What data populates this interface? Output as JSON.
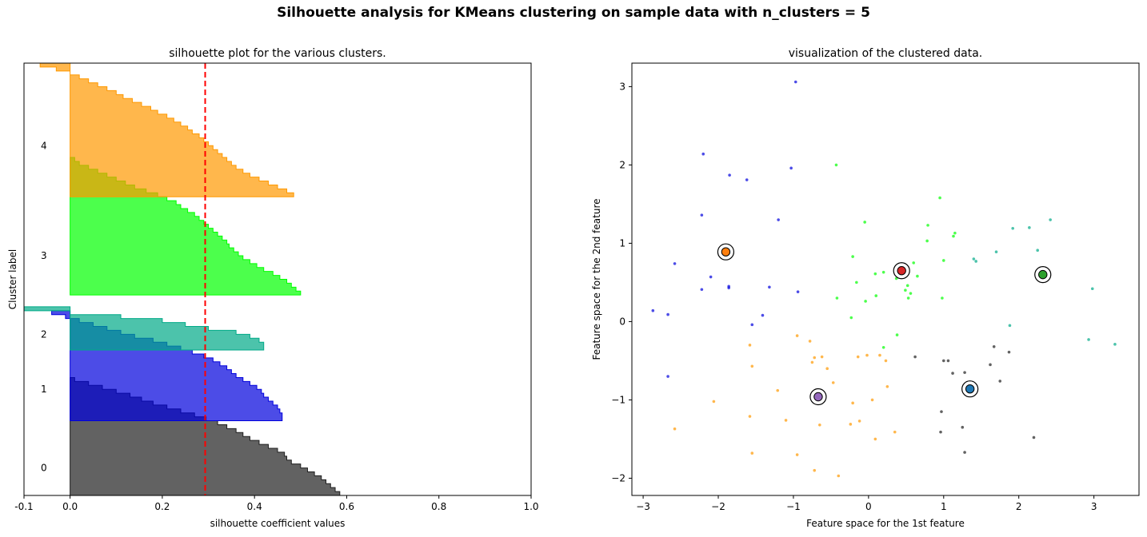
{
  "figure": {
    "suptitle": "Silhouette analysis for KMeans clustering on sample data with n_clusters = 5"
  },
  "chart_data": [
    {
      "type": "area",
      "title": "silhouette plot for the various clusters.",
      "xlabel": "silhouette coefficient values",
      "ylabel": "Cluster label",
      "xlim": [
        -0.1,
        1.0
      ],
      "ylim": [
        0,
        110
      ],
      "xticks": [
        -0.1,
        0.0,
        0.2,
        0.4,
        0.6,
        0.8,
        1.0
      ],
      "xtick_labels": [
        "-0.1",
        "0.0",
        "0.2",
        "0.4",
        "0.6",
        "0.8",
        "1.0"
      ],
      "yticks": [],
      "grid": false,
      "average_silhouette": 0.293,
      "average_line_color": "#ff0000",
      "clusters": [
        {
          "label": "0",
          "label_y": 7,
          "y_lower": 0,
          "color": "#1f1f1f",
          "values": [
            0.585,
            0.575,
            0.565,
            0.555,
            0.545,
            0.53,
            0.515,
            0.5,
            0.48,
            0.47,
            0.465,
            0.45,
            0.43,
            0.41,
            0.39,
            0.375,
            0.36,
            0.34,
            0.32,
            0.295,
            0.27,
            0.24,
            0.21,
            0.18,
            0.155,
            0.13,
            0.1,
            0.07,
            0.04,
            0.01
          ]
        },
        {
          "label": "1",
          "label_y": 27,
          "y_lower": 19,
          "color": "#0000dd",
          "values": [
            0.46,
            0.46,
            0.455,
            0.45,
            0.44,
            0.43,
            0.42,
            0.415,
            0.405,
            0.39,
            0.375,
            0.36,
            0.35,
            0.34,
            0.325,
            0.31,
            0.29,
            0.265,
            0.24,
            0.21,
            0.18,
            0.14,
            0.11,
            0.08,
            0.05,
            0.02,
            -0.01,
            -0.04
          ]
        },
        {
          "label": "2",
          "label_y": 41,
          "y_lower": 37,
          "color": "#00aa88",
          "values": [
            0.42,
            0.42,
            0.41,
            0.39,
            0.36,
            0.3,
            0.25,
            0.2,
            0.11,
            0.0,
            -0.1
          ]
        },
        {
          "label": "3",
          "label_y": 61,
          "y_lower": 51,
          "color": "#00ff00",
          "values": [
            0.5,
            0.49,
            0.48,
            0.47,
            0.455,
            0.44,
            0.42,
            0.405,
            0.39,
            0.375,
            0.365,
            0.355,
            0.345,
            0.34,
            0.33,
            0.32,
            0.31,
            0.3,
            0.29,
            0.28,
            0.27,
            0.255,
            0.24,
            0.23,
            0.21,
            0.19,
            0.165,
            0.14,
            0.12,
            0.1,
            0.08,
            0.06,
            0.04,
            0.02,
            0.01
          ]
        },
        {
          "label": "4",
          "label_y": 89,
          "y_lower": 76,
          "color": "#ff9900",
          "values": [
            0.485,
            0.47,
            0.45,
            0.43,
            0.41,
            0.39,
            0.375,
            0.36,
            0.35,
            0.34,
            0.33,
            0.32,
            0.31,
            0.3,
            0.29,
            0.28,
            0.265,
            0.255,
            0.24,
            0.225,
            0.21,
            0.19,
            0.175,
            0.155,
            0.135,
            0.115,
            0.1,
            0.08,
            0.06,
            0.04,
            0.02,
            0.0,
            -0.03,
            -0.065
          ]
        }
      ]
    },
    {
      "type": "scatter",
      "title": "visualization of the clustered data.",
      "xlabel": "Feature space for the 1st feature",
      "ylabel": "Feature space for the 2nd feature",
      "xlim": [
        -3.15,
        3.6
      ],
      "ylim": [
        -2.22,
        3.3
      ],
      "xticks": [
        -3,
        -2,
        -1,
        0,
        1,
        2,
        3
      ],
      "xtick_labels": [
        "−3",
        "−2",
        "−1",
        "0",
        "1",
        "2",
        "3"
      ],
      "yticks": [
        -2,
        -1,
        0,
        1,
        2,
        3
      ],
      "ytick_labels": [
        "−2",
        "−1",
        "0",
        "1",
        "2",
        "3"
      ],
      "grid": false,
      "series": [
        {
          "cluster": 0,
          "color": "#1f1f1f",
          "points": [
            [
              0.62,
              -0.45
            ],
            [
              1.0,
              -0.5
            ],
            [
              1.06,
              -0.5
            ],
            [
              1.12,
              -0.66
            ],
            [
              1.28,
              -0.65
            ],
            [
              1.62,
              -0.55
            ],
            [
              1.67,
              -0.32
            ],
            [
              1.87,
              -0.39
            ],
            [
              1.75,
              -0.76
            ],
            [
              0.97,
              -1.15
            ],
            [
              0.96,
              -1.41
            ],
            [
              1.25,
              -1.35
            ],
            [
              1.28,
              -1.67
            ],
            [
              2.2,
              -1.48
            ]
          ]
        },
        {
          "cluster": 1,
          "color": "#0000dd",
          "points": [
            [
              -0.97,
              3.06
            ],
            [
              -2.2,
              2.14
            ],
            [
              -1.85,
              1.87
            ],
            [
              -1.62,
              1.81
            ],
            [
              -1.03,
              1.96
            ],
            [
              -2.22,
              1.36
            ],
            [
              -1.2,
              1.3
            ],
            [
              -2.58,
              0.74
            ],
            [
              -2.1,
              0.57
            ],
            [
              -2.22,
              0.41
            ],
            [
              -1.86,
              0.43
            ],
            [
              -1.86,
              0.45
            ],
            [
              -1.32,
              0.44
            ],
            [
              -0.94,
              0.38
            ],
            [
              -2.87,
              0.14
            ],
            [
              -2.67,
              0.09
            ],
            [
              -1.41,
              0.08
            ],
            [
              -1.55,
              -0.04
            ],
            [
              -2.67,
              -0.7
            ]
          ]
        },
        {
          "cluster": 2,
          "color": "#00aa88",
          "points": [
            [
              1.4,
              0.8
            ],
            [
              1.43,
              0.77
            ],
            [
              1.7,
              0.89
            ],
            [
              1.92,
              1.19
            ],
            [
              2.14,
              1.2
            ],
            [
              2.25,
              0.91
            ],
            [
              2.42,
              1.3
            ],
            [
              1.88,
              -0.05
            ],
            [
              2.98,
              0.42
            ],
            [
              2.93,
              -0.23
            ],
            [
              3.28,
              -0.29
            ]
          ]
        },
        {
          "cluster": 3,
          "color": "#00ff00",
          "points": [
            [
              -0.43,
              2.0
            ],
            [
              0.95,
              1.58
            ],
            [
              -0.05,
              1.27
            ],
            [
              0.79,
              1.23
            ],
            [
              1.13,
              1.09
            ],
            [
              1.15,
              1.13
            ],
            [
              0.78,
              1.03
            ],
            [
              -0.21,
              0.83
            ],
            [
              0.09,
              0.61
            ],
            [
              0.2,
              0.63
            ],
            [
              0.37,
              0.55
            ],
            [
              0.44,
              0.6
            ],
            [
              0.6,
              0.75
            ],
            [
              0.65,
              0.58
            ],
            [
              1.0,
              0.78
            ],
            [
              -0.16,
              0.5
            ],
            [
              0.49,
              0.4
            ],
            [
              0.56,
              0.36
            ],
            [
              0.52,
              0.46
            ],
            [
              0.1,
              0.33
            ],
            [
              -0.04,
              0.26
            ],
            [
              -0.42,
              0.3
            ],
            [
              0.53,
              0.3
            ],
            [
              0.98,
              0.3
            ],
            [
              -0.23,
              0.05
            ],
            [
              0.38,
              -0.17
            ],
            [
              0.2,
              -0.33
            ]
          ]
        },
        {
          "cluster": 4,
          "color": "#ff9900",
          "points": [
            [
              -1.58,
              -0.3
            ],
            [
              -0.95,
              -0.18
            ],
            [
              -0.78,
              -0.25
            ],
            [
              -0.72,
              -0.46
            ],
            [
              -0.62,
              -0.45
            ],
            [
              -0.55,
              -0.6
            ],
            [
              -0.75,
              -0.52
            ],
            [
              -0.14,
              -0.45
            ],
            [
              -0.02,
              -0.43
            ],
            [
              0.15,
              -0.43
            ],
            [
              0.23,
              -0.5
            ],
            [
              -0.47,
              -0.78
            ],
            [
              -1.55,
              -0.57
            ],
            [
              -2.06,
              -1.02
            ],
            [
              -1.21,
              -0.88
            ],
            [
              -0.21,
              -1.04
            ],
            [
              0.25,
              -0.83
            ],
            [
              0.05,
              -1.0
            ],
            [
              -2.58,
              -1.37
            ],
            [
              -1.58,
              -1.21
            ],
            [
              -1.1,
              -1.26
            ],
            [
              -0.65,
              -1.32
            ],
            [
              -0.24,
              -1.31
            ],
            [
              -0.12,
              -1.27
            ],
            [
              0.35,
              -1.41
            ],
            [
              0.09,
              -1.5
            ],
            [
              -1.55,
              -1.68
            ],
            [
              -0.95,
              -1.7
            ],
            [
              -0.72,
              -1.9
            ],
            [
              -0.4,
              -1.97
            ]
          ]
        }
      ],
      "centers": [
        {
          "label": "0",
          "x": 1.35,
          "y": -0.86,
          "color": "#1f77b4"
        },
        {
          "label": "1",
          "x": -1.9,
          "y": 0.89,
          "color": "#ff7f0e"
        },
        {
          "label": "2",
          "x": 2.32,
          "y": 0.6,
          "color": "#2ca02c"
        },
        {
          "label": "3",
          "x": 0.44,
          "y": 0.65,
          "color": "#d62728"
        },
        {
          "label": "4",
          "x": -0.67,
          "y": -0.96,
          "color": "#9467bd"
        }
      ]
    }
  ]
}
